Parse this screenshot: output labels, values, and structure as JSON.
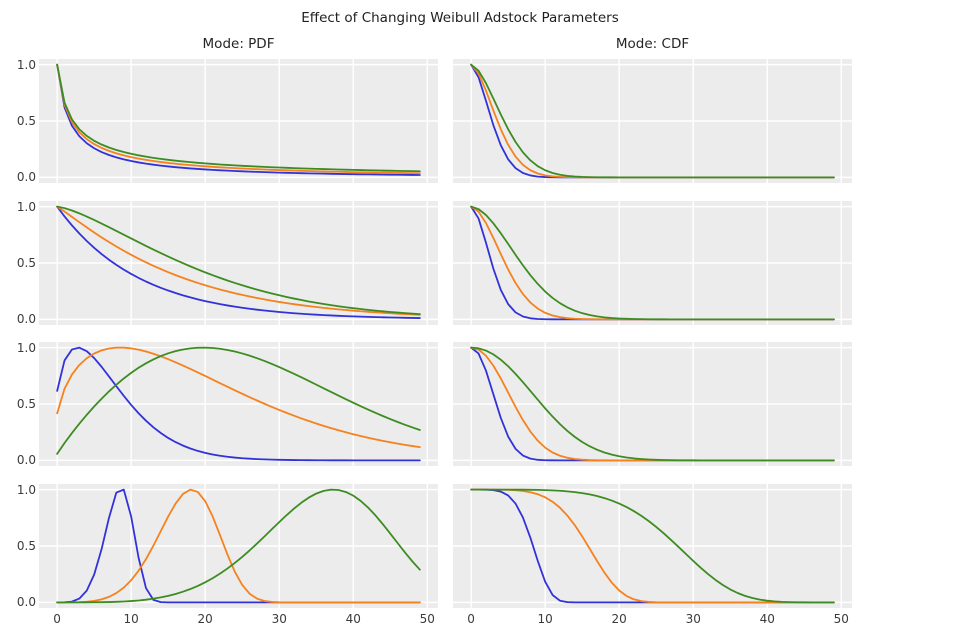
{
  "title": "Effect of Changing Weibull Adstock Parameters",
  "columns": [
    {
      "key": "pdf",
      "title": "Mode: PDF"
    },
    {
      "key": "cdf",
      "title": "Mode: CDF"
    }
  ],
  "palette": {
    "blue": "#3232d9",
    "orange": "#f5821e",
    "green": "#3d8c22"
  },
  "chart_data": {
    "type": "line",
    "title": "Effect of Changing Weibull Adstock Parameters",
    "subplot_titles": [
      "Mode: PDF",
      "Mode: CDF"
    ],
    "layout": {
      "nrows": 4,
      "ncols": 2,
      "grid": true,
      "legend": false,
      "plot_background": "#ececec",
      "grid_color": "#ffffff",
      "x_tick_labels_bottom_row_only": true,
      "y_tick_labels_left_column_only": true
    },
    "x": {
      "label": "",
      "ticks": [
        0,
        10,
        20,
        30,
        40,
        50
      ],
      "lim": [
        -2.45,
        51.45
      ],
      "sampling": "integer days 0 to 49"
    },
    "y": {
      "label": "",
      "tick_labels": [
        "1.0",
        "0.5",
        "0.0"
      ],
      "tick_values": [
        1.0,
        0.5,
        0.0
      ],
      "lim": [
        -0.05,
        1.05
      ]
    },
    "normalization": "each curve scaled so its maximum equals 1",
    "series_colors": [
      "blue",
      "orange",
      "green"
    ],
    "rows": [
      {
        "row": 1,
        "pdf": [
          {
            "color": "blue",
            "kind": "weibull_pdf",
            "shape": 0.5,
            "scale": 10,
            "x_offset": 1
          },
          {
            "color": "orange",
            "kind": "weibull_pdf",
            "shape": 0.5,
            "scale": 20,
            "x_offset": 1
          },
          {
            "color": "green",
            "kind": "weibull_pdf",
            "shape": 0.5,
            "scale": 40,
            "x_offset": 1
          }
        ],
        "cdf": [
          {
            "color": "blue",
            "kind": "weibull_survival",
            "shape": 1.7,
            "scale": 3.5
          },
          {
            "color": "orange",
            "kind": "weibull_survival",
            "shape": 1.7,
            "scale": 4.4
          },
          {
            "color": "green",
            "kind": "weibull_survival",
            "shape": 1.7,
            "scale": 5.5
          }
        ]
      },
      {
        "row": 2,
        "pdf": [
          {
            "color": "blue",
            "kind": "weibull_survival",
            "shape": 1.0,
            "scale": 11
          },
          {
            "color": "orange",
            "kind": "weibull_survival",
            "shape": 1.1,
            "scale": 17
          },
          {
            "color": "green",
            "kind": "weibull_survival",
            "shape": 1.4,
            "scale": 22
          }
        ],
        "cdf": [
          {
            "color": "blue",
            "kind": "weibull_survival",
            "shape": 1.8,
            "scale": 3.4
          },
          {
            "color": "orange",
            "kind": "weibull_survival",
            "shape": 1.8,
            "scale": 5.6
          },
          {
            "color": "green",
            "kind": "weibull_survival",
            "shape": 1.8,
            "scale": 8.3
          }
        ]
      },
      {
        "row": 3,
        "pdf": [
          {
            "color": "blue",
            "kind": "weibull_pdf",
            "shape": 1.4,
            "scale": 8,
            "x_offset": 0.5
          },
          {
            "color": "orange",
            "kind": "weibull_pdf",
            "shape": 1.4,
            "scale": 22,
            "x_offset": 0.5
          },
          {
            "color": "green",
            "kind": "weibull_pdf",
            "shape": 1.9,
            "scale": 30,
            "x_offset": 0.5
          }
        ],
        "cdf": [
          {
            "color": "blue",
            "kind": "weibull_survival",
            "shape": 2.1,
            "scale": 4.05
          },
          {
            "color": "orange",
            "kind": "weibull_survival",
            "shape": 2.1,
            "scale": 6.9
          },
          {
            "color": "green",
            "kind": "weibull_survival",
            "shape": 2.1,
            "scale": 11.3
          }
        ]
      },
      {
        "row": 4,
        "pdf": [
          {
            "color": "blue",
            "kind": "weibull_pdf",
            "shape": 5,
            "scale": 9,
            "x_offset": 0
          },
          {
            "color": "orange",
            "kind": "weibull_pdf",
            "shape": 5,
            "scale": 19,
            "x_offset": 0
          },
          {
            "color": "green",
            "kind": "weibull_pdf",
            "shape": 5,
            "scale": 39,
            "x_offset": 0
          }
        ],
        "cdf": [
          {
            "color": "blue",
            "kind": "weibull_survival",
            "shape": 5,
            "scale": 9
          },
          {
            "color": "orange",
            "kind": "weibull_survival",
            "shape": 5,
            "scale": 17
          },
          {
            "color": "green",
            "kind": "weibull_survival",
            "shape": 5,
            "scale": 30
          }
        ]
      }
    ]
  }
}
